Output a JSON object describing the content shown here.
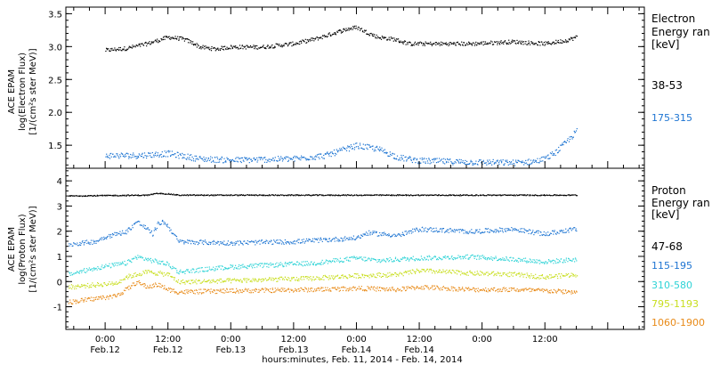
{
  "chart_data": [
    {
      "type": "scatter",
      "panel": "electron",
      "ylabel": [
        "ACE EPAM",
        "log(Electron Flux)",
        "[1/(cm²s ster MeV)]"
      ],
      "ylim": [
        1.15,
        3.6
      ],
      "yticks": [
        1.5,
        2.0,
        2.5,
        3.0,
        3.5
      ],
      "yticklabels": [
        "1.5",
        "2.0",
        "2.5",
        "3.0",
        "3.5"
      ],
      "legend_title": [
        "Electron",
        "Energy ran",
        "[keV]"
      ],
      "series": [
        {
          "name": "38-53",
          "color": "#000000",
          "anchors_t": [
            0,
            4,
            8,
            12,
            15,
            17,
            18,
            21,
            24,
            30,
            36,
            40,
            44,
            46,
            48,
            50,
            52,
            55,
            58,
            60,
            64,
            70,
            78,
            84,
            88,
            90
          ],
          "anchors_v": [
            2.95,
            2.98,
            3.05,
            3.15,
            3.12,
            3.05,
            3.0,
            2.97,
            3.0,
            3.0,
            3.05,
            3.12,
            3.22,
            3.27,
            3.3,
            3.22,
            3.15,
            3.12,
            3.05,
            3.05,
            3.05,
            3.05,
            3.08,
            3.05,
            3.1,
            3.15
          ]
        },
        {
          "name": "175-315",
          "color": "#1d74d2",
          "anchors_t": [
            0,
            6,
            12,
            18,
            24,
            36,
            42,
            46,
            48,
            52,
            56,
            60,
            70,
            78,
            82,
            84,
            86,
            88,
            90
          ],
          "anchors_v": [
            1.35,
            1.35,
            1.38,
            1.3,
            1.28,
            1.3,
            1.35,
            1.45,
            1.5,
            1.45,
            1.32,
            1.27,
            1.25,
            1.24,
            1.26,
            1.3,
            1.4,
            1.55,
            1.72
          ]
        }
      ]
    },
    {
      "type": "scatter",
      "panel": "proton",
      "ylabel": [
        "ACE EPAM",
        "log(Proton Flux)",
        "[1/(cm²s ster MeV)]"
      ],
      "ylim": [
        -1.9,
        4.5
      ],
      "yticks": [
        -1,
        0,
        1,
        2,
        3,
        4
      ],
      "yticklabels": [
        "-1",
        "0",
        "1",
        "2",
        "3",
        "4"
      ],
      "xlabel": "hours:minutes, Feb. 11, 2014 - Feb. 14, 2014",
      "xlim": [
        -7.5,
        103
      ],
      "xticks": [
        0,
        12,
        24,
        36,
        48,
        60,
        72,
        84
      ],
      "xticklabels_top": [
        "0:00",
        "12:00",
        "0:00",
        "12:00",
        "0:00",
        "12:00",
        "0:00",
        "12:00"
      ],
      "xticklabels_bottom": [
        "Feb.12",
        "Feb.12",
        "Feb.13",
        "Feb.13",
        "Feb.14",
        "Feb.14",
        "",
        ""
      ],
      "legend_title": [
        "Proton",
        "Energy ran",
        "[keV]"
      ],
      "series": [
        {
          "name": "47-68",
          "color": "#000000",
          "anchors_t": [
            -7,
            8,
            10,
            12,
            14,
            90
          ],
          "anchors_v": [
            3.42,
            3.45,
            3.52,
            3.5,
            3.45,
            3.45
          ]
        },
        {
          "name": "115-195",
          "color": "#1d74d2",
          "anchors_t": [
            -7,
            -2,
            0,
            4,
            6,
            8,
            9,
            10,
            11,
            12,
            14,
            24,
            36,
            48,
            50,
            56,
            60,
            70,
            78,
            84,
            88,
            90
          ],
          "anchors_v": [
            1.5,
            1.6,
            1.8,
            2.0,
            2.4,
            2.1,
            1.9,
            2.3,
            2.4,
            2.2,
            1.6,
            1.55,
            1.6,
            1.75,
            1.95,
            1.85,
            2.1,
            2.0,
            2.1,
            1.9,
            2.05,
            2.1
          ]
        },
        {
          "name": "310-580",
          "color": "#2ed3d6",
          "anchors_t": [
            -7,
            -2,
            4,
            6,
            8,
            10,
            12,
            14,
            24,
            40,
            48,
            52,
            60,
            70,
            78,
            84,
            90
          ],
          "anchors_v": [
            0.3,
            0.55,
            0.75,
            1.0,
            0.9,
            0.8,
            0.7,
            0.4,
            0.6,
            0.75,
            0.95,
            0.85,
            0.95,
            1.0,
            0.9,
            0.8,
            0.9
          ]
        },
        {
          "name": "795-1193",
          "color": "#c8de1e",
          "anchors_t": [
            -7,
            2,
            4,
            8,
            12,
            14,
            24,
            40,
            48,
            56,
            60,
            70,
            78,
            84,
            90
          ],
          "anchors_v": [
            -0.2,
            -0.05,
            0.2,
            0.4,
            0.3,
            0.0,
            0.05,
            0.15,
            0.25,
            0.3,
            0.45,
            0.35,
            0.3,
            0.2,
            0.3
          ]
        },
        {
          "name": "1060-1900",
          "color": "#e88a18",
          "anchors_t": [
            -7,
            2,
            4,
            6,
            8,
            10,
            12,
            14,
            24,
            40,
            48,
            56,
            60,
            70,
            78,
            84,
            90
          ],
          "anchors_v": [
            -0.8,
            -0.55,
            -0.3,
            0.0,
            -0.2,
            -0.1,
            -0.3,
            -0.4,
            -0.35,
            -0.3,
            -0.25,
            -0.3,
            -0.2,
            -0.3,
            -0.3,
            -0.35,
            -0.4
          ]
        }
      ]
    }
  ]
}
